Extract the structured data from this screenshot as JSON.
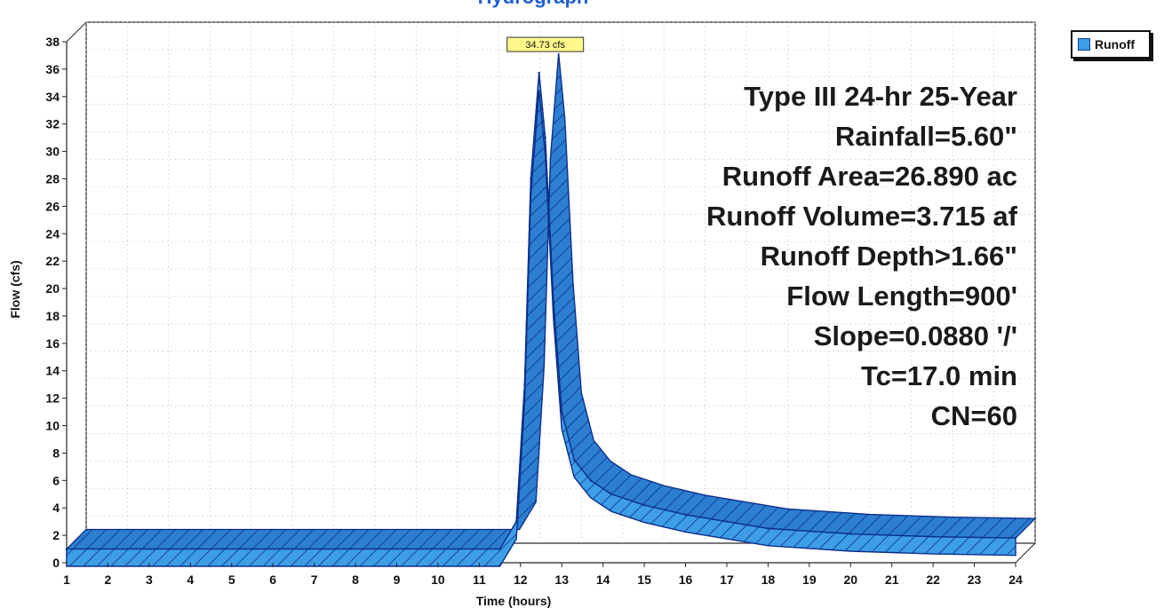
{
  "chart_data": {
    "type": "area",
    "title": "Hydrograph",
    "xlabel": "Time (hours)",
    "ylabel": "Flow (cfs)",
    "xlim": [
      1,
      24
    ],
    "ylim": [
      0,
      38
    ],
    "x_ticks": [
      1,
      2,
      3,
      4,
      5,
      6,
      7,
      8,
      9,
      10,
      11,
      12,
      13,
      14,
      15,
      16,
      17,
      18,
      19,
      20,
      21,
      22,
      23,
      24
    ],
    "y_ticks": [
      0,
      2,
      4,
      6,
      8,
      10,
      12,
      14,
      16,
      18,
      20,
      22,
      24,
      26,
      28,
      30,
      32,
      34,
      36,
      38
    ],
    "grid": true,
    "legend_position": "top-right",
    "series": [
      {
        "name": "Runoff",
        "color": "#3d9ee6",
        "x": [
          1,
          11.5,
          11.9,
          12.1,
          12.25,
          12.45,
          12.6,
          12.8,
          13.0,
          13.3,
          13.7,
          14.2,
          15,
          16,
          17,
          18,
          20,
          22,
          24
        ],
        "y": [
          0,
          0,
          2,
          12,
          27,
          34.73,
          30,
          18,
          10,
          6.5,
          5,
          4,
          3.2,
          2.5,
          2,
          1.5,
          1.1,
          0.9,
          0.8
        ]
      }
    ],
    "peak_label": "34.73 cfs",
    "annotations": [
      "Type III 24-hr 25-Year",
      "Rainfall=5.60\"",
      "Runoff Area=26.890 ac",
      "Runoff Volume=3.715 af",
      "Runoff Depth>1.66\"",
      "Flow Length=900'",
      "Slope=0.0880 '/'",
      "Tc=17.0 min",
      "CN=60"
    ]
  }
}
